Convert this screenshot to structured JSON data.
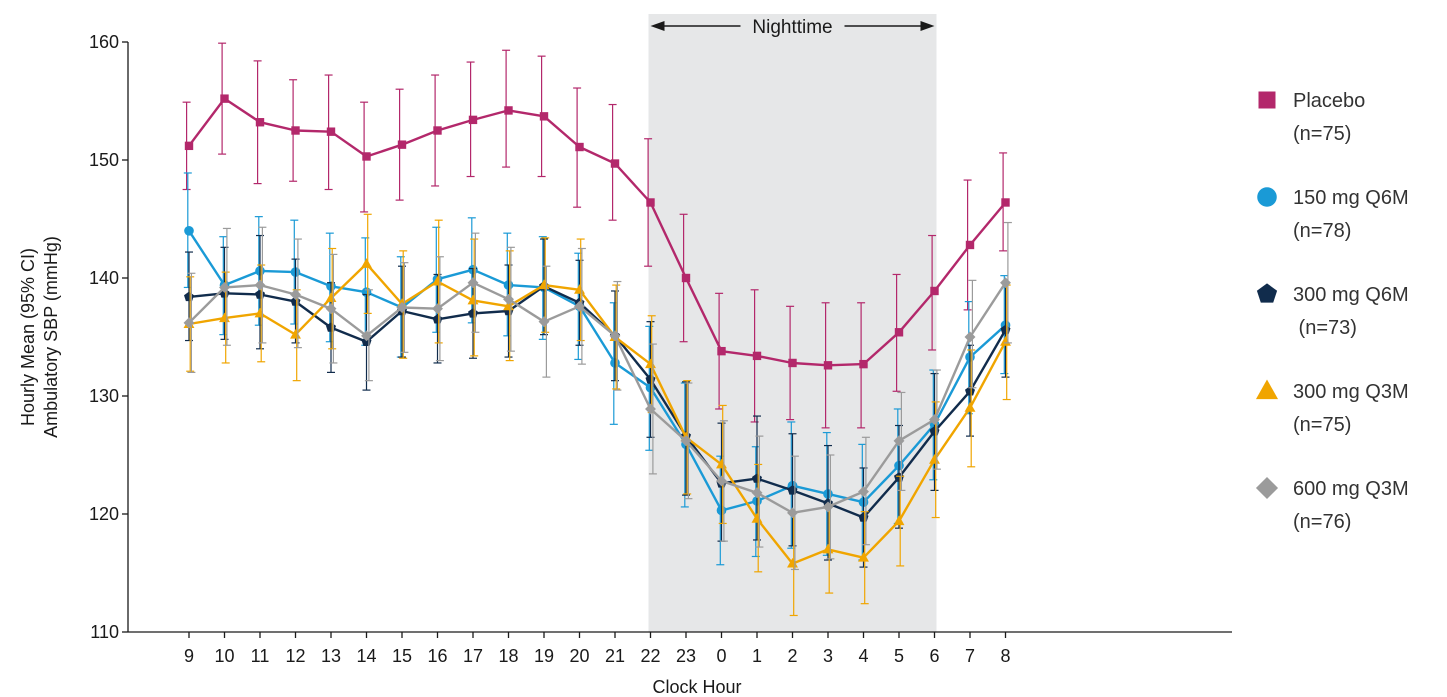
{
  "chart_data": {
    "type": "line",
    "title": "",
    "xlabel": "Clock Hour",
    "ylabel": [
      "Hourly Mean (95% CI)",
      "Ambulatory SBP (mmHg)"
    ],
    "categories": [
      "9",
      "10",
      "11",
      "12",
      "13",
      "14",
      "15",
      "16",
      "17",
      "18",
      "19",
      "20",
      "21",
      "22",
      "23",
      "0",
      "1",
      "2",
      "3",
      "4",
      "5",
      "6",
      "7",
      "8"
    ],
    "ylim": [
      110,
      160
    ],
    "yticks": [
      110,
      120,
      130,
      140,
      150,
      160
    ],
    "grid": false,
    "legend_position": "right",
    "shaded_band": {
      "label": "Nighttime",
      "from": "22",
      "to": "6",
      "color": "#e6e7e8"
    },
    "series": [
      {
        "name": "Placebo",
        "n": "(n=75)",
        "marker": "square",
        "color": "#b3286b",
        "values": [
          151.2,
          155.2,
          153.2,
          152.5,
          152.4,
          150.3,
          151.3,
          152.5,
          153.4,
          154.2,
          153.7,
          151.1,
          149.7,
          146.4,
          140.0,
          133.8,
          133.4,
          132.8,
          132.6,
          132.7,
          135.4,
          138.9,
          142.8,
          146.4
        ],
        "ci_low": [
          147.5,
          150.5,
          148.0,
          148.2,
          147.5,
          145.6,
          146.6,
          147.8,
          148.6,
          149.4,
          148.6,
          146.0,
          144.9,
          141.0,
          134.6,
          128.9,
          127.8,
          128.0,
          127.3,
          127.3,
          130.4,
          133.9,
          137.3,
          142.3
        ],
        "ci_high": [
          154.9,
          159.9,
          158.4,
          156.8,
          157.2,
          154.9,
          156.0,
          157.2,
          158.3,
          159.3,
          158.8,
          156.1,
          154.7,
          151.8,
          145.4,
          138.7,
          139.0,
          137.6,
          137.9,
          137.9,
          140.3,
          143.6,
          148.3,
          150.6
        ]
      },
      {
        "name": "150 mg Q6M",
        "n": "(n=78)",
        "marker": "circle",
        "color": "#1a9ad6",
        "values": [
          144.0,
          139.4,
          140.6,
          140.5,
          139.3,
          138.8,
          137.5,
          139.9,
          140.7,
          139.4,
          139.2,
          137.6,
          132.8,
          130.7,
          125.9,
          120.3,
          121.1,
          122.4,
          121.7,
          121.0,
          124.1,
          127.6,
          133.3,
          136.0
        ],
        "ci_low": [
          139.2,
          135.2,
          136.0,
          136.1,
          134.6,
          134.3,
          133.3,
          135.4,
          136.2,
          135.1,
          134.8,
          133.1,
          127.6,
          125.4,
          120.6,
          115.7,
          116.4,
          117.1,
          116.5,
          116.1,
          119.2,
          122.9,
          128.5,
          131.9
        ],
        "ci_high": [
          148.9,
          143.5,
          145.2,
          144.9,
          143.8,
          143.4,
          141.8,
          144.3,
          145.1,
          143.8,
          143.5,
          142.1,
          137.9,
          135.9,
          131.1,
          124.9,
          125.7,
          127.8,
          126.9,
          125.9,
          128.9,
          132.2,
          138.0,
          140.2
        ]
      },
      {
        "name": "300 mg Q6M",
        "n": " (n=73)",
        "marker": "pentagon",
        "color": "#112c4c",
        "values": [
          138.4,
          138.7,
          138.6,
          138.0,
          135.8,
          134.6,
          137.2,
          136.5,
          137.0,
          137.2,
          139.3,
          137.9,
          135.1,
          131.4,
          126.6,
          122.6,
          123.0,
          122.0,
          120.9,
          119.7,
          123.1,
          127.0,
          130.4,
          135.6
        ],
        "ci_low": [
          134.7,
          134.8,
          134.0,
          134.5,
          132.0,
          130.5,
          133.3,
          132.8,
          133.2,
          133.3,
          135.2,
          134.3,
          131.3,
          126.5,
          121.6,
          117.7,
          117.8,
          117.3,
          116.1,
          115.5,
          118.8,
          122.0,
          126.6,
          131.6
        ],
        "ci_high": [
          142.2,
          142.6,
          143.6,
          141.6,
          139.6,
          138.6,
          141.0,
          140.3,
          140.8,
          141.1,
          143.3,
          141.5,
          138.9,
          136.3,
          131.2,
          127.7,
          128.3,
          126.8,
          125.8,
          123.9,
          127.5,
          131.9,
          134.3,
          139.6
        ]
      },
      {
        "name": "300 mg Q3M",
        "n": "(n=75)",
        "marker": "triangle",
        "color": "#f0a500",
        "values": [
          136.1,
          136.6,
          137.0,
          135.2,
          138.3,
          141.2,
          137.8,
          139.7,
          138.1,
          137.6,
          139.4,
          139.0,
          135.0,
          132.7,
          126.5,
          124.2,
          119.6,
          115.8,
          117.0,
          116.3,
          119.4,
          124.6,
          129.0,
          134.6
        ],
        "ci_low": [
          132.1,
          132.8,
          132.9,
          131.3,
          134.0,
          137.0,
          133.2,
          134.5,
          133.4,
          133.0,
          135.4,
          134.7,
          130.6,
          128.6,
          121.7,
          119.2,
          115.1,
          111.4,
          113.3,
          112.4,
          115.6,
          119.7,
          124.0,
          129.7
        ],
        "ci_high": [
          140.1,
          140.5,
          141.1,
          139.0,
          142.5,
          145.4,
          142.3,
          144.9,
          143.3,
          142.3,
          143.4,
          143.3,
          139.4,
          136.8,
          131.3,
          129.2,
          124.2,
          120.2,
          120.8,
          120.2,
          123.2,
          129.5,
          133.9,
          139.4
        ]
      },
      {
        "name": "600 mg Q3M",
        "n": "(n=76)",
        "marker": "diamond",
        "color": "#9b9b9b",
        "values": [
          136.2,
          139.2,
          139.4,
          138.6,
          137.4,
          135.1,
          137.5,
          137.4,
          139.6,
          138.2,
          136.3,
          137.6,
          135.1,
          128.9,
          126.2,
          122.8,
          121.8,
          120.1,
          120.6,
          121.9,
          126.2,
          128.0,
          135.0,
          139.6
        ],
        "ci_low": [
          132.0,
          134.3,
          134.5,
          134.1,
          132.8,
          131.3,
          133.7,
          133.0,
          135.4,
          133.8,
          131.6,
          132.7,
          130.5,
          123.4,
          121.3,
          117.7,
          117.2,
          115.3,
          116.2,
          117.4,
          122.0,
          123.8,
          130.7,
          134.5
        ],
        "ci_high": [
          140.4,
          144.2,
          144.3,
          143.3,
          142.0,
          139.0,
          141.3,
          141.8,
          143.8,
          142.6,
          141.0,
          142.5,
          139.7,
          134.4,
          131.1,
          127.9,
          126.6,
          124.9,
          125.0,
          126.5,
          130.3,
          132.2,
          139.8,
          144.7
        ]
      }
    ]
  }
}
